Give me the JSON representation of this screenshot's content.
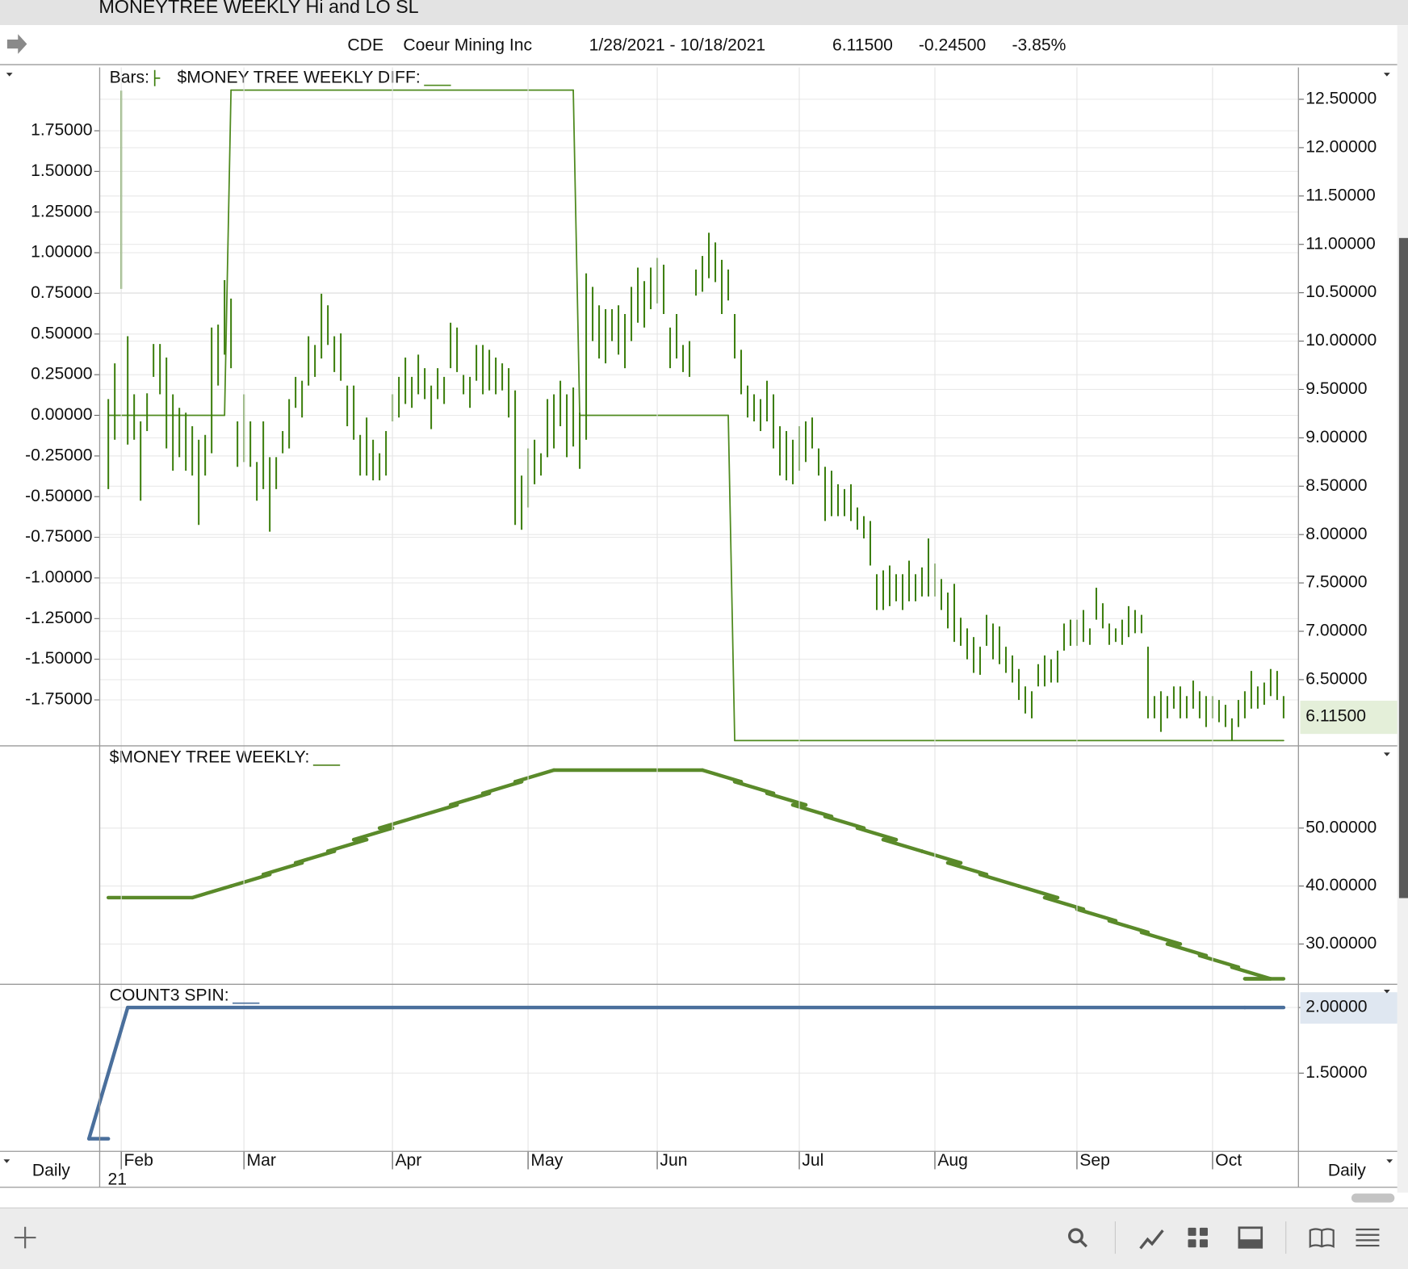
{
  "window": {
    "title": "MONEYTREE WEEKLY Hi and LO SL"
  },
  "header": {
    "symbol": "CDE",
    "name": "Coeur Mining Inc",
    "range": "1/28/2021 - 10/18/2021",
    "last": "6.11500",
    "change": "-0.24500",
    "change_pct": "-3.85%"
  },
  "footer": {
    "period_left": "Daily",
    "period_right": "Daily"
  },
  "chart_data": [
    {
      "type": "ohlc",
      "xlim": [
        -1.34,
        184.3
      ],
      "ylim": [
        -2.03,
        2.14
      ],
      "yticks": [
        {
          "value": -1.75,
          "label": "-1.75000"
        },
        {
          "value": -1.5,
          "label": "-1.50000"
        },
        {
          "value": -1.25,
          "label": "-1.25000"
        },
        {
          "value": -1,
          "label": "-1.00000"
        },
        {
          "value": -0.75,
          "label": "-0.75000"
        },
        {
          "value": -0.5,
          "label": "-0.50000"
        },
        {
          "value": -0.25,
          "label": "-0.25000"
        },
        {
          "value": 0,
          "label": "0.00000"
        },
        {
          "value": 0.25,
          "label": "0.25000"
        },
        {
          "value": 0.5,
          "label": "0.50000"
        },
        {
          "value": 0.75,
          "label": "0.75000"
        },
        {
          "value": 1,
          "label": "1.00000"
        },
        {
          "value": 1.25,
          "label": "1.25000"
        },
        {
          "value": 1.5,
          "label": "1.50000"
        },
        {
          "value": 1.75,
          "label": "1.75000"
        }
      ],
      "y2lim": [
        5.82,
        12.83
      ],
      "y2ticks": [
        {
          "value": 6.5,
          "label": "6.50000"
        },
        {
          "value": 7,
          "label": "7.00000"
        },
        {
          "value": 7.5,
          "label": "7.50000"
        },
        {
          "value": 8,
          "label": "8.00000"
        },
        {
          "value": 8.5,
          "label": "8.50000"
        },
        {
          "value": 9,
          "label": "9.00000"
        },
        {
          "value": 9.5,
          "label": "9.50000"
        },
        {
          "value": 10,
          "label": "10.00000"
        },
        {
          "value": 10.5,
          "label": "10.50000"
        },
        {
          "value": 11,
          "label": "11.00000"
        },
        {
          "value": 11.5,
          "label": "11.50000"
        },
        {
          "value": 12,
          "label": "12.00000"
        },
        {
          "value": 12.5,
          "label": "12.50000"
        }
      ],
      "grid": true,
      "last_value": {
        "value": 6.115,
        "label": "6.11500"
      },
      "series": [
        {
          "name": "$MONEY TREE WEEKLY DIFF:",
          "color": "#4f8a1f",
          "style": "step",
          "x": [
            0,
            19,
            73,
            97,
            182
          ],
          "values": [
            0,
            2,
            0,
            -2,
            -2
          ]
        },
        {
          "name": "Bars:",
          "color": "#3a7d0a",
          "axis": "y2",
          "high": [
            9.4,
            9.77,
            12.59,
            10.05,
            9.45,
            9.17,
            9.46,
            9.97,
            9.97,
            9.83,
            9.45,
            9.31,
            9.26,
            9.12,
            8.98,
            9.03,
            10.14,
            10.17,
            10.63,
            10.44,
            9.17,
            9.45,
            9.17,
            8.75,
            9.17,
            8.8,
            8.8,
            9.07,
            9.4,
            9.63,
            9.59,
            10.05,
            9.96,
            10.49,
            10.37,
            10.05,
            10.08,
            9.54,
            9.54,
            9.03,
            9.21,
            8.98,
            8.84,
            9.07,
            9.45,
            9.63,
            9.83,
            9.63,
            9.86,
            9.72,
            9.54,
            9.72,
            9.63,
            10.19,
            10.14,
            9.65,
            9.63,
            9.96,
            9.96,
            9.91,
            9.83,
            9.77,
            9.72,
            9.49,
            8.61,
            8.89,
            8.98,
            8.84,
            9.4,
            9.45,
            9.59,
            9.45,
            9.52,
            9.26,
            10.7,
            10.56,
            10.37,
            10.33,
            10.33,
            10.37,
            10.28,
            10.56,
            10.76,
            10.62,
            10.76,
            10.86,
            10.79,
            10.14,
            10.28,
            9.96,
            10.0,
            10.74,
            10.88,
            11.12,
            11.02,
            10.84,
            10.74,
            10.28,
            9.91,
            9.54,
            9.45,
            9.4,
            9.59,
            9.45,
            9.12,
            9.07,
            8.98,
            9.12,
            9.17,
            9.21,
            8.89,
            8.7,
            8.66,
            8.52,
            8.47,
            8.52,
            8.28,
            8.19,
            8.14,
            7.59,
            7.63,
            7.68,
            7.59,
            7.59,
            7.73,
            7.59,
            7.66,
            7.96,
            7.7,
            7.54,
            7.4,
            7.49,
            7.14,
            7.03,
            6.94,
            6.84,
            7.17,
            7.08,
            7.05,
            6.84,
            6.75,
            6.61,
            6.43,
            6.38,
            6.66,
            6.75,
            6.71,
            6.8,
            7.08,
            7.12,
            7.12,
            7.22,
            7.03,
            7.45,
            7.29,
            7.08,
            7.03,
            7.12,
            7.26,
            7.22,
            7.17,
            6.84,
            6.33,
            6.38,
            6.33,
            6.43,
            6.43,
            6.33,
            6.49,
            6.38,
            6.33,
            6.33,
            6.29,
            6.24,
            6.1,
            6.29,
            6.38,
            6.59,
            6.43,
            6.47,
            6.61,
            6.59,
            6.33
          ],
          "low": [
            8.47,
            8.98,
            10.54,
            8.93,
            8.98,
            8.35,
            9.07,
            9.63,
            9.45,
            8.89,
            8.66,
            8.8,
            8.66,
            8.61,
            8.1,
            8.61,
            8.84,
            9.54,
            9.86,
            9.72,
            8.7,
            8.75,
            8.7,
            8.35,
            8.47,
            8.03,
            8.47,
            8.84,
            8.89,
            9.31,
            9.21,
            9.54,
            9.63,
            9.82,
            9.96,
            9.68,
            9.59,
            9.12,
            8.98,
            8.61,
            8.61,
            8.56,
            8.56,
            8.61,
            9.17,
            9.21,
            9.35,
            9.31,
            9.45,
            9.4,
            9.09,
            9.4,
            9.35,
            9.72,
            9.68,
            9.45,
            9.31,
            9.59,
            9.45,
            9.49,
            9.45,
            9.49,
            9.21,
            8.1,
            8.05,
            8.28,
            8.52,
            8.61,
            8.8,
            8.89,
            9.12,
            8.8,
            8.91,
            8.68,
            8.98,
            10.0,
            9.82,
            9.77,
            10.0,
            9.86,
            9.72,
            10.0,
            10.19,
            10.14,
            10.33,
            10.39,
            10.28,
            9.72,
            9.82,
            9.68,
            9.63,
            10.47,
            10.51,
            10.65,
            10.61,
            10.28,
            10.42,
            9.82,
            9.45,
            9.21,
            9.17,
            9.07,
            9.17,
            8.89,
            8.61,
            8.56,
            8.52,
            8.66,
            8.75,
            8.89,
            8.61,
            8.14,
            8.19,
            8.19,
            8.19,
            8.14,
            8.05,
            7.96,
            7.68,
            7.22,
            7.22,
            7.26,
            7.31,
            7.22,
            7.31,
            7.31,
            7.36,
            7.36,
            7.36,
            7.22,
            7.03,
            6.89,
            6.85,
            6.71,
            6.57,
            6.55,
            6.85,
            6.71,
            6.66,
            6.57,
            6.47,
            6.29,
            6.15,
            6.1,
            6.43,
            6.43,
            6.47,
            6.47,
            6.8,
            6.85,
            6.85,
            6.89,
            6.86,
            7.12,
            7.03,
            6.86,
            6.89,
            6.86,
            6.94,
            6.98,
            6.98,
            6.1,
            6.1,
            5.96,
            6.1,
            6.2,
            6.1,
            6.1,
            6.2,
            6.1,
            6.01,
            6.1,
            6.06,
            6.01,
            5.87,
            6.01,
            6.1,
            6.2,
            6.2,
            6.24,
            6.33,
            6.29,
            6.1
          ]
        }
      ]
    },
    {
      "type": "line",
      "xlim": [
        -1.34,
        184.3
      ],
      "ylim": [
        23.2,
        63.95
      ],
      "yaxis": "right",
      "yticks": [
        {
          "value": 30,
          "label": "30.00000"
        },
        {
          "value": 40,
          "label": "40.00000"
        },
        {
          "value": 50,
          "label": "50.00000"
        }
      ],
      "grid": true,
      "series": [
        {
          "name": "$MONEY TREE WEEKLY:",
          "color": "#5a8a2a",
          "style": "step",
          "x": [
            0,
            19,
            25,
            30,
            35,
            40,
            44,
            48,
            54,
            59,
            64,
            69,
            98,
            103,
            108,
            112,
            117,
            122,
            126,
            132,
            136,
            141,
            147,
            151,
            156,
            161,
            166,
            170,
            175,
            180,
            182
          ],
          "values": [
            38,
            40,
            42,
            44,
            46,
            48,
            50,
            52,
            54,
            56,
            58,
            60,
            58,
            56,
            54,
            52,
            50,
            48,
            46,
            44,
            42,
            40,
            38,
            36,
            34,
            32,
            30,
            28,
            26,
            24,
            24
          ]
        }
      ]
    },
    {
      "type": "line",
      "xlim": [
        -1.34,
        184.3
      ],
      "ylim": [
        0.904,
        2.17
      ],
      "yaxis": "right",
      "yticks": [
        {
          "value": 1.5,
          "label": "1.50000"
        },
        {
          "value": 2,
          "label": "2.00000"
        }
      ],
      "grid": true,
      "xticks": [
        {
          "value": 2,
          "label": "Feb"
        },
        {
          "value": 21,
          "label": "Mar"
        },
        {
          "value": 44,
          "label": "Apr"
        },
        {
          "value": 65,
          "label": "May"
        },
        {
          "value": 85,
          "label": "Jun"
        },
        {
          "value": 107,
          "label": "Jul"
        },
        {
          "value": 128,
          "label": "Aug"
        },
        {
          "value": 150,
          "label": "Sep"
        },
        {
          "value": 171,
          "label": "Oct"
        }
      ],
      "year_label": "21",
      "series": [
        {
          "name": "COUNT3 SPIN:",
          "color": "#4a6f9c",
          "style": "step",
          "x": [
            0,
            3,
            182
          ],
          "values": [
            1,
            2,
            2
          ]
        }
      ]
    }
  ]
}
